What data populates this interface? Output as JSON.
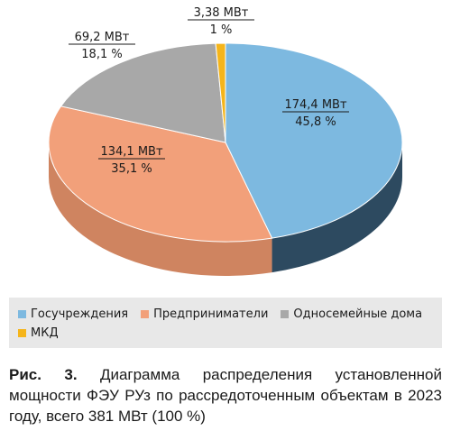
{
  "chart_data": {
    "type": "pie",
    "title": "",
    "slices": [
      {
        "name": "Госучреждения",
        "value": 174.4,
        "value_label": "174,4 МВт",
        "percent_label": "45,8 %",
        "color": "#7db9e0",
        "side_color": "#2d4a60"
      },
      {
        "name": "Предприниматели",
        "value": 134.1,
        "value_label": "134,1 МВт",
        "percent_label": "35,1 %",
        "color": "#f2a07a",
        "side_color": "#cf8460"
      },
      {
        "name": "Односемейные дома",
        "value": 69.2,
        "value_label": "69,2 МВт",
        "percent_label": "18,1 %",
        "color": "#a8a8a8",
        "side_color": "#8a8a8a"
      },
      {
        "name": "МКД",
        "value": 3.38,
        "value_label": "3,38 МВт",
        "percent_label": "1 %",
        "color": "#f5b51b",
        "side_color": "#c98f10"
      }
    ],
    "legend_position": "bottom"
  },
  "caption": {
    "prefix": "Рис. 3.",
    "text": " Диаграмма распределения установленной мощности ФЭУ РУз по рассредоточенным объектам в 2023 году, всего 381 МВт (100 %)"
  }
}
